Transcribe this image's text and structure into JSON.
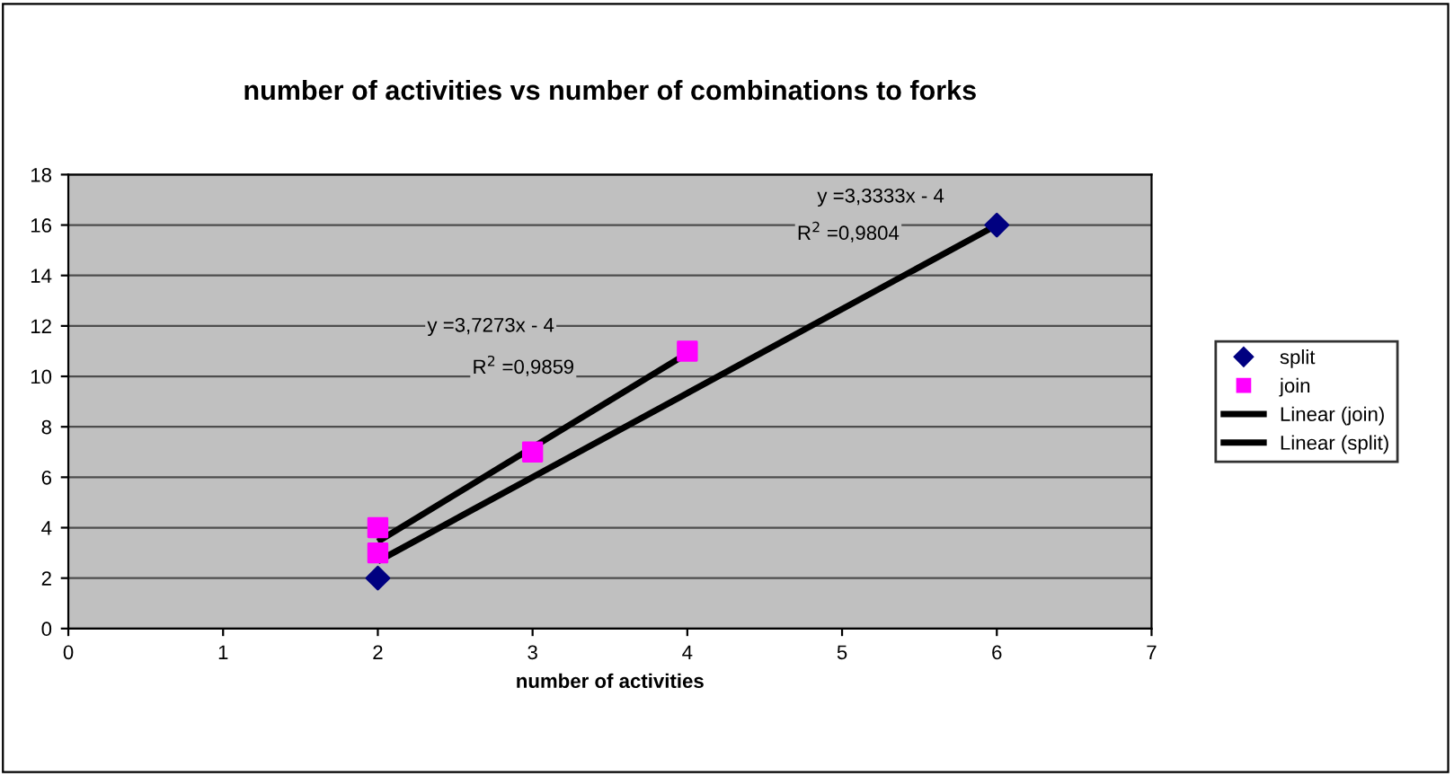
{
  "chart_data": {
    "type": "scatter",
    "title": "number of activities vs number of combinations to forks",
    "xlabel": "number of activities",
    "xlim": [
      0,
      7
    ],
    "xticks": [
      0,
      1,
      2,
      3,
      4,
      5,
      6,
      7
    ],
    "ylim": [
      0,
      18
    ],
    "yticks": [
      0,
      2,
      4,
      6,
      8,
      10,
      12,
      14,
      16,
      18
    ],
    "grid": "y",
    "legend": "right",
    "series": [
      {
        "name": "split",
        "type": "scatter",
        "marker": "diamond",
        "color": "#000080",
        "x": [
          2,
          6
        ],
        "values": [
          2,
          16
        ]
      },
      {
        "name": "join",
        "type": "scatter",
        "marker": "square",
        "color": "#ff00ff",
        "x": [
          2,
          2,
          3,
          4
        ],
        "values": [
          3,
          4,
          7,
          11
        ]
      },
      {
        "name": "Linear (join)",
        "type": "line",
        "marker": "none",
        "color": "#000000",
        "x": [
          2,
          4
        ],
        "values": [
          3.45,
          10.91
        ]
      },
      {
        "name": "Linear (split)",
        "type": "line",
        "marker": "none",
        "color": "#000000",
        "x": [
          2,
          6
        ],
        "values": [
          2.67,
          16
        ]
      }
    ],
    "annotations": [
      "y =3,3333x - 4",
      "R$^{2}$ =0,9804",
      "y =3,7273x - 4",
      "R$^{2}$ =0,9859"
    ]
  }
}
